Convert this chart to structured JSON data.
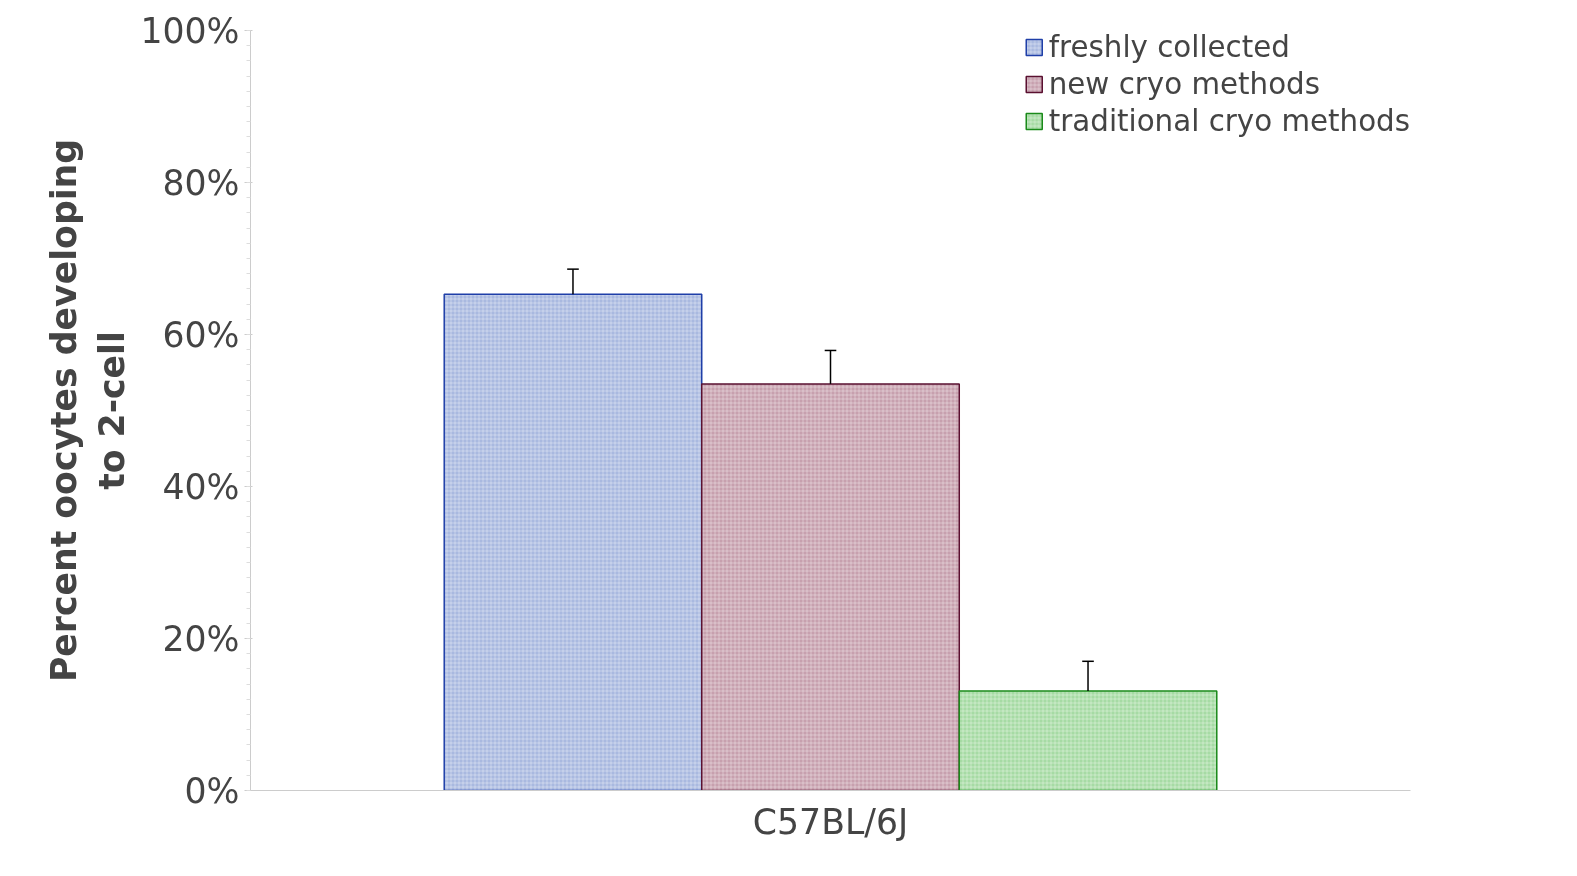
{
  "chart_data": {
    "type": "bar",
    "ylabel": "Percent oocytes developing to 2-cell",
    "categories": [
      "C57BL/6J"
    ],
    "series": [
      {
        "name": "freshly collected",
        "color": "#a9b9e0",
        "values": [
          65.3
        ],
        "errors": [
          [
            65.3,
            68.6
          ]
        ]
      },
      {
        "name": "new cryo methods",
        "color": "#c7a0ae",
        "values": [
          53.5
        ],
        "errors": [
          [
            53.5,
            57.9
          ]
        ]
      },
      {
        "name": "traditional cryo methods",
        "color": "#a6dba4",
        "values": [
          13.1
        ],
        "errors": [
          [
            13.1,
            17.0
          ]
        ]
      }
    ],
    "ylim": [
      0,
      100
    ],
    "yticks": [
      {
        "value": 0,
        "label": "0%"
      },
      {
        "value": 20,
        "label": "20%"
      },
      {
        "value": 40,
        "label": "40%"
      },
      {
        "value": 60,
        "label": "60%"
      },
      {
        "value": 80,
        "label": "80%"
      },
      {
        "value": 100,
        "label": "100%"
      }
    ],
    "grid": false,
    "legend": "top right"
  }
}
